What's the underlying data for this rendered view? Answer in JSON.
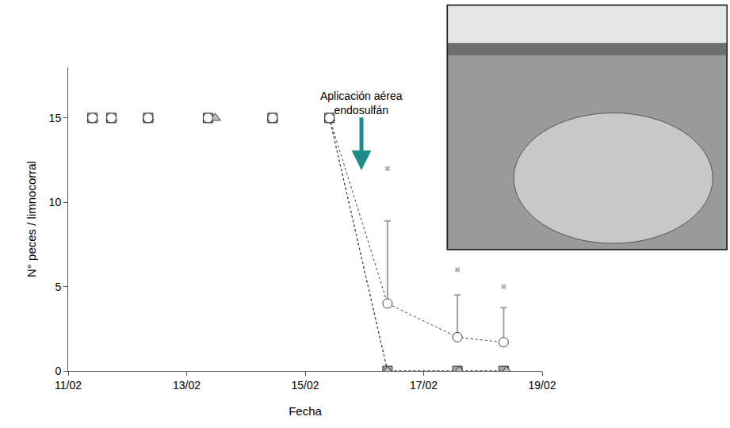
{
  "chart_data": {
    "type": "scatter",
    "x_label": "Fecha",
    "y_label": "N° peces / limnocorral",
    "xlim": [
      11,
      19
    ],
    "xticks": [
      {
        "value": 11,
        "label": "11/02"
      },
      {
        "value": 13,
        "label": "13/02"
      },
      {
        "value": 15,
        "label": "15/02"
      },
      {
        "value": 17,
        "label": "17/02"
      },
      {
        "value": 19,
        "label": "19/02"
      }
    ],
    "ylim": [
      0,
      18
    ],
    "yticks": [
      0,
      5,
      10,
      15
    ],
    "grid": false,
    "annotation": {
      "lines": [
        "Aplicación aérea",
        "endosulfán"
      ],
      "x": 15.95,
      "y": 11.9,
      "color": "#1f8c8c"
    },
    "series": [
      {
        "marker": "square",
        "color": "#a6a6a6",
        "line_style": "dot",
        "x": [
          11.41,
          11.73,
          12.35,
          13.36,
          14.45,
          15.41,
          16.39,
          17.57,
          18.35
        ],
        "values": [
          15,
          15,
          15,
          15,
          15,
          15,
          0,
          0,
          0
        ]
      },
      {
        "marker": "triangle-up",
        "color": "#bdbdbd",
        "line_style": "dot",
        "x": [
          11.41,
          11.73,
          12.35,
          13.48,
          14.45,
          15.41,
          16.39,
          17.6,
          18.4
        ],
        "values": [
          15,
          15,
          15,
          15,
          15,
          15,
          0,
          0,
          0
        ]
      },
      {
        "marker": "circle-open",
        "color": "#404040",
        "line_style": "dot",
        "x": [
          11.41,
          11.73,
          12.35,
          13.36,
          14.45,
          15.41,
          16.39,
          17.57,
          18.35
        ],
        "values": [
          15,
          15,
          15,
          15,
          15,
          15,
          4,
          2,
          1.7
        ],
        "error_upper": [
          null,
          null,
          null,
          null,
          null,
          null,
          4.9,
          2.5,
          2.05
        ]
      },
      {
        "marker": "x",
        "color": "#b0b0b0",
        "x": [
          16.39,
          17.57,
          18.35
        ],
        "values": [
          12,
          6,
          5
        ]
      }
    ]
  }
}
